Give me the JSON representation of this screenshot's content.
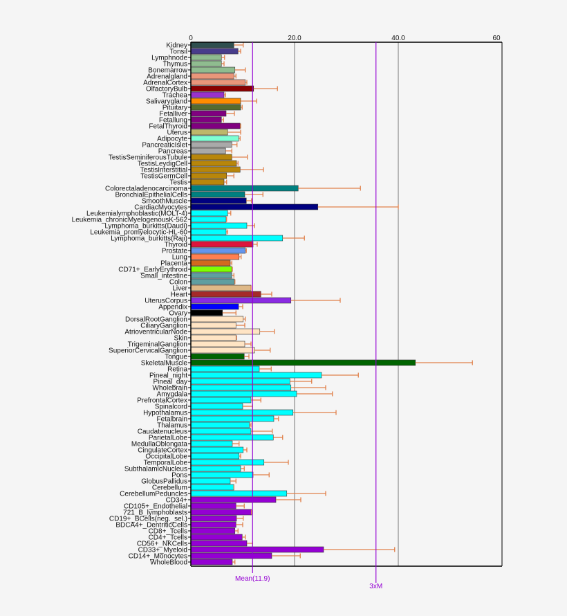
{
  "chart_data": {
    "type": "bar",
    "orientation": "horizontal",
    "xlim": [
      0,
      60
    ],
    "x_ticks": [
      "0",
      "20.0",
      "40.0",
      "60"
    ],
    "grid": "vertical lines at 20 and 40",
    "reference_lines": [
      {
        "label": "Mean(11.9)",
        "value": 11.9,
        "color": "#9400d3"
      },
      {
        "label": "3xM",
        "value": 35.7,
        "color": "#9400d3"
      }
    ],
    "error_bar_color": "#e0804a",
    "categories": [
      "Kidney",
      "Tonsil",
      "Lymphnode",
      "Thymus",
      "Bonemarrow",
      "Adrenalgland",
      "AdrenalCortex",
      "OlfactoryBulb",
      "Trachea",
      "Salivarygland",
      "Pituitary",
      "Fetalliver",
      "Fetallung",
      "FetalThyroid",
      "Uterus",
      "Adipocyte",
      "PancreaticIslet",
      "Pancreas",
      "TestisSeminiferousTubule",
      "TestisLeydigCell",
      "TestisInterstitial",
      "TestisGermCell",
      "Testis",
      "Colorectaladenocarcinoma",
      "BronchialEpithelialCells",
      "SmoothMuscle",
      "CardiacMyocytes",
      "Leukemialymphoblastic(MOLT-4)",
      "Leukemia_chronicMyelogenousK-562",
      "Lymphoma_burkitts(Daudi)",
      "Leukemia_promyelocytic-HL-60",
      "Lymphoma_burkitts(Raji)",
      "Thyroid",
      "Prostate",
      "Lung",
      "Placenta",
      "CD71+_EarlyErythroid",
      "Small_intestine",
      "Colon",
      "Liver",
      "Heart",
      "UterusCorpus",
      "Appendix",
      "Ovary",
      "DorsalRootGanglion",
      "CiliaryGanglion",
      "AtrioventricularNode",
      "Skin",
      "TrigeminalGanglion",
      "SuperiorCervicalGanglion",
      "Tongue",
      "SkeletalMuscle",
      "Retina",
      "Pineal_night",
      "Pineal_day",
      "Wholebrain",
      "Amygdala",
      "PrefrontalCortex",
      "Spinalcord",
      "Hypothalamus",
      "Fetalbrain",
      "Thalamus",
      "Caudatenucleus",
      "ParietalLobe",
      "MedullaOblongata",
      "CingulateCortex",
      "OccipitalLobe",
      "TemporalLobe",
      "SubthalamicNucleus",
      "Pons",
      "GlobusPallidus",
      "Cerebellum",
      "CerebellumPeduncles",
      "CD34+",
      "CD105+_Endothelial",
      "721_B_lymphoblasts",
      "CD19+_BCells(neg._sel.)",
      "BDCA4+_DentriticCells",
      "CD8+_Tcells",
      "CD4+_Tcells",
      "CD56+_NKCells",
      "CD33+_Myeloid",
      "CD14+_Monocytes",
      "WholeBlood"
    ],
    "values": [
      8.3,
      9.1,
      5.9,
      5.9,
      8.5,
      8.3,
      10.5,
      12.1,
      6.4,
      9.6,
      9.6,
      6.8,
      5.9,
      9.5,
      7.1,
      9.2,
      7.9,
      6.7,
      7.9,
      8.8,
      9.5,
      6.9,
      6.4,
      20.7,
      10.4,
      10.7,
      24.5,
      7.1,
      6.8,
      10.8,
      6.8,
      17.7,
      12.0,
      10.5,
      9.3,
      7.6,
      7.9,
      7.9,
      8.4,
      11.6,
      13.5,
      19.3,
      9.2,
      6.1,
      10.1,
      8.7,
      13.3,
      8.7,
      10.4,
      12.3,
      10.3,
      43.3,
      13.2,
      25.2,
      19.1,
      19.3,
      20.4,
      11.6,
      10.0,
      19.7,
      16.0,
      11.3,
      11.6,
      15.9,
      8.0,
      10.1,
      9.3,
      14.1,
      9.6,
      12.0,
      7.6,
      8.3,
      18.5,
      16.4,
      8.7,
      11.7,
      8.8,
      8.7,
      8.5,
      9.9,
      10.8,
      25.6,
      15.6,
      8.0
    ],
    "error_upper": [
      10.1,
      9.6,
      6.5,
      6.4,
      10.5,
      8.7,
      10.8,
      16.7,
      6.7,
      12.7,
      9.9,
      8.4,
      6.3,
      9.6,
      9.6,
      9.5,
      8.9,
      7.9,
      10.9,
      9.1,
      14.0,
      8.3,
      6.9,
      32.7,
      13.9,
      11.7,
      40.0,
      7.7,
      6.9,
      12.3,
      7.1,
      21.9,
      12.8,
      10.7,
      9.7,
      7.9,
      8.0,
      8.3,
      8.5,
      11.6,
      15.6,
      28.8,
      10.0,
      8.7,
      10.5,
      10.4,
      16.1,
      8.8,
      11.6,
      15.3,
      11.2,
      54.3,
      15.5,
      32.3,
      23.3,
      26.0,
      27.3,
      13.5,
      11.9,
      28.0,
      16.9,
      11.6,
      15.7,
      17.7,
      9.3,
      10.8,
      9.6,
      18.8,
      10.3,
      15.1,
      8.7,
      8.3,
      26.0,
      21.2,
      10.3,
      11.7,
      10.1,
      10.0,
      9.1,
      10.5,
      11.9,
      39.3,
      21.1,
      8.5
    ],
    "colors": [
      "#2f4f4f",
      "#483d8b",
      "#8fbc8f",
      "#8fbc8f",
      "#8fbc8f",
      "#e9967a",
      "#e9967a",
      "#8b0000",
      "#9932cc",
      "#ff8c00",
      "#556b2f",
      "#800080",
      "#800080",
      "#800080",
      "#bdb76b",
      "#7fffd4",
      "#a9a9a9",
      "#a9a9a9",
      "#b8860b",
      "#b8860b",
      "#b8860b",
      "#b8860b",
      "#b8860b",
      "#008080",
      "#008080",
      "#000080",
      "#000080",
      "#00ffff",
      "#00ffff",
      "#00ffff",
      "#00ffff",
      "#00ffff",
      "#dc143c",
      "#6495ed",
      "#ff7f50",
      "#d2691e",
      "#7fff00",
      "#5f9ea0",
      "#5f9ea0",
      "#deb887",
      "#a52a2a",
      "#8a2be2",
      "#0000ff",
      "#000000",
      "#ffe4c4",
      "#ffe4c4",
      "#ffe4c4",
      "#ffe4c4",
      "#ffe4c4",
      "#ffe4c4",
      "#006400",
      "#006400",
      "#00ffff",
      "#00ffff",
      "#00ffff",
      "#00ffff",
      "#00ffff",
      "#00ffff",
      "#00ffff",
      "#00ffff",
      "#00ffff",
      "#00ffff",
      "#00ffff",
      "#00ffff",
      "#00ffff",
      "#00ffff",
      "#00ffff",
      "#00ffff",
      "#00ffff",
      "#00ffff",
      "#00ffff",
      "#00ffff",
      "#00ffff",
      "#9400d3",
      "#9400d3",
      "#9400d3",
      "#9400d3",
      "#9400d3",
      "#9400d3",
      "#9400d3",
      "#9400d3",
      "#9400d3",
      "#9400d3",
      "#9400d3"
    ]
  }
}
